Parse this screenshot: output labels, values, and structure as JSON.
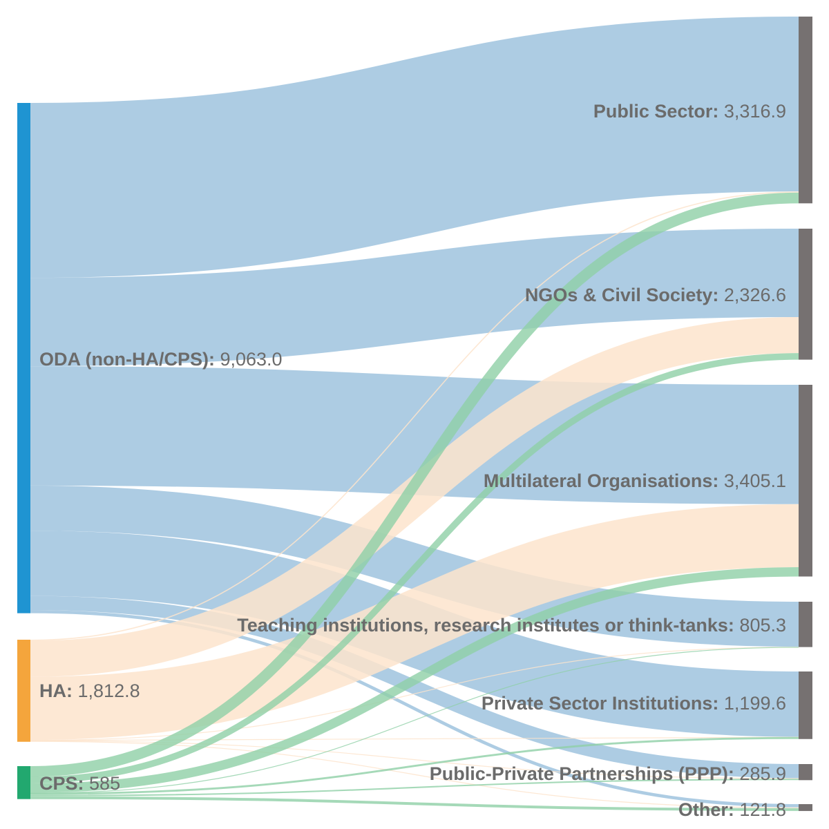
{
  "diagram": {
    "type": "sankey",
    "sources": [
      {
        "id": "oda",
        "name": "ODA (non-HA/CPS):",
        "value_text": "9,063.0",
        "value": 9063.0,
        "color": "#1f94d2"
      },
      {
        "id": "ha",
        "name": "HA:",
        "value_text": "1,812.8",
        "value": 1812.8,
        "color": "#f4a53c"
      },
      {
        "id": "cps",
        "name": "CPS:",
        "value_text": "585",
        "value": 585,
        "color": "#22a86f"
      }
    ],
    "targets": [
      {
        "id": "pub",
        "name": "Public Sector:",
        "value_text": "3,316.9",
        "value": 3316.9
      },
      {
        "id": "ngo",
        "name": "NGOs & Civil Society:",
        "value_text": "2,326.6",
        "value": 2326.6
      },
      {
        "id": "mlo",
        "name": "Multilateral Organisations:",
        "value_text": "3,405.1",
        "value": 3405.1
      },
      {
        "id": "tea",
        "name": "Teaching institutions, research institutes or think-tanks:",
        "value_text": "805.3",
        "value": 805.3
      },
      {
        "id": "pri",
        "name": "Private Sector Institutions:",
        "value_text": "1,199.6",
        "value": 1199.6
      },
      {
        "id": "ppp",
        "name": "Public-Private Partnerships (PPP):",
        "value_text": "285.9",
        "value": 285.9
      },
      {
        "id": "oth",
        "name": "Other:",
        "value_text": "121.8",
        "value": 121.8
      }
    ],
    "links": [
      {
        "source": "oda",
        "target": "pub",
        "value": 3106
      },
      {
        "source": "oda",
        "target": "ngo",
        "value": 1570
      },
      {
        "source": "oda",
        "target": "mlo",
        "value": 2120
      },
      {
        "source": "oda",
        "target": "tea",
        "value": 800
      },
      {
        "source": "oda",
        "target": "pri",
        "value": 1160
      },
      {
        "source": "oda",
        "target": "ppp",
        "value": 250
      },
      {
        "source": "oda",
        "target": "oth",
        "value": 57
      },
      {
        "source": "ha",
        "target": "pub",
        "value": 20
      },
      {
        "source": "ha",
        "target": "ngo",
        "value": 640
      },
      {
        "source": "ha",
        "target": "mlo",
        "value": 1120
      },
      {
        "source": "ha",
        "target": "tea",
        "value": 3
      },
      {
        "source": "ha",
        "target": "pri",
        "value": 4
      },
      {
        "source": "ha",
        "target": "ppp",
        "value": 10
      },
      {
        "source": "ha",
        "target": "oth",
        "value": 15.8
      },
      {
        "source": "cps",
        "target": "pub",
        "value": 190.9
      },
      {
        "source": "cps",
        "target": "ngo",
        "value": 116.6
      },
      {
        "source": "cps",
        "target": "mlo",
        "value": 165.1
      },
      {
        "source": "cps",
        "target": "tea",
        "value": 2.3
      },
      {
        "source": "cps",
        "target": "pri",
        "value": 35.6
      },
      {
        "source": "cps",
        "target": "ppp",
        "value": 25.9
      },
      {
        "source": "cps",
        "target": "oth",
        "value": 49
      }
    ],
    "colors": {
      "target_node": "#767171",
      "link_oda": "#a9c9e1",
      "link_ha": "#fde4cc",
      "link_cps": "#8fd0a6",
      "label": "#6b6b6b"
    }
  }
}
